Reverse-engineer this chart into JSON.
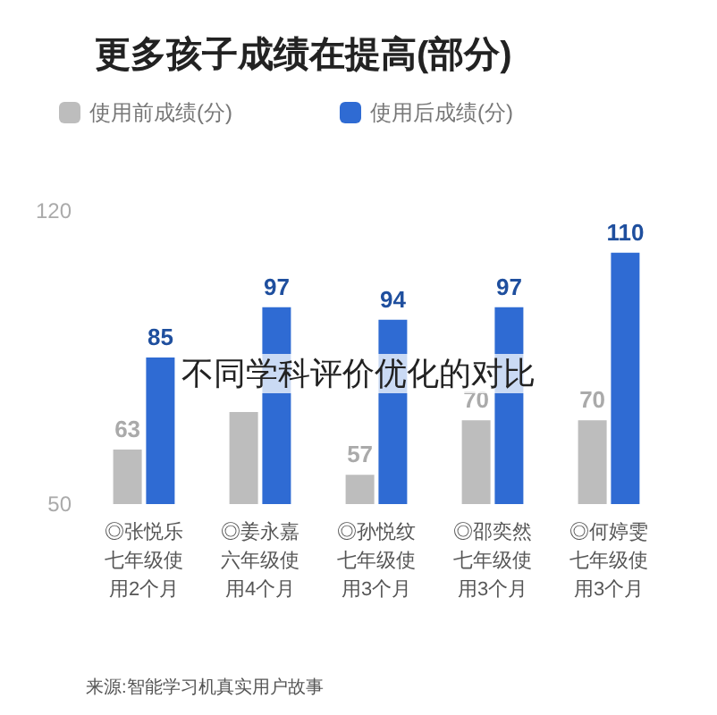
{
  "chart_data": {
    "type": "bar",
    "title": "更多孩子成绩在提高(部分)",
    "categories": [
      "◎张悦乐七年级使用2个月",
      "◎姜永嘉六年级使用4个月",
      "◎孙悦纹七年级使用3个月",
      "◎邵奕然七年级使用3个月",
      "◎何婷雯七年级使用3个月"
    ],
    "series": [
      {
        "name": "使用前成绩(分)",
        "color": "#bdbdbd",
        "values": [
          63,
          72,
          57,
          70,
          70
        ],
        "value_labels": [
          "63",
          null,
          "57",
          "70",
          "70"
        ]
      },
      {
        "name": "使用后成绩(分)",
        "color": "#2f6bd3",
        "values": [
          85,
          97,
          94,
          97,
          110
        ],
        "value_labels": [
          "85",
          "97",
          "94",
          "97",
          "110"
        ]
      }
    ],
    "ylim": [
      50,
      120
    ],
    "yticks": [
      50,
      120
    ],
    "grid": false,
    "legend": "top left",
    "annotations": [
      "不同学科评价优化的对比",
      "来源:智能学习机真实用户故事"
    ]
  }
}
